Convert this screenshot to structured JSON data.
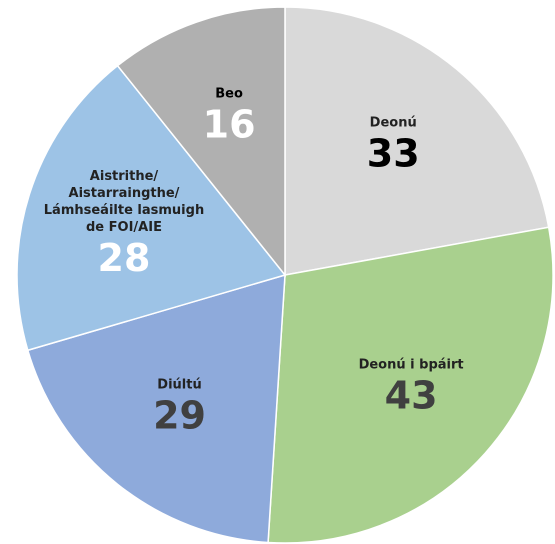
{
  "chart_data": {
    "type": "pie",
    "categories": [
      "Deonú",
      "Deonú i bpáirt",
      "Diúltú",
      "Aistrithe/\nAistarraingthe/\nLámhseáilte lasmuigh\nde FOI/AIE",
      "Beo"
    ],
    "values": [
      33,
      43,
      29,
      28,
      16
    ],
    "colors": [
      "#d9d9d9",
      "#a9d08e",
      "#8eaadb",
      "#9dc3e6",
      "#b0b0b0"
    ],
    "label_colors": [
      "#000000",
      "#404040",
      "#404040",
      "#ffffff",
      "#ffffff"
    ],
    "name_colors": [
      "#222222",
      "#222222",
      "#222222",
      "#222222",
      "#000000"
    ]
  }
}
